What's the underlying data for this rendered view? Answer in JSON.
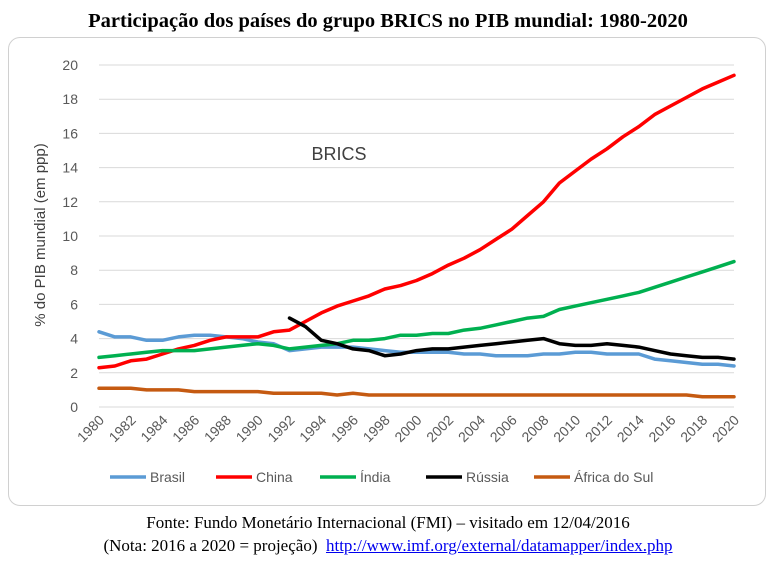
{
  "title": "Participação dos países do grupo BRICS no PIB mundial: 1980-2020",
  "source": {
    "line1": "Fonte: Fundo Monetário Internacional (FMI) – visitado em 12/04/2016",
    "note": "(Nota: 2016 a 2020 = projeção)",
    "link": "http://www.imf.org/external/datamapper/index.php"
  },
  "chart_data": {
    "type": "line",
    "title": "",
    "annotation": "BRICS",
    "xlabel": "",
    "ylabel": "% do PIB mundial (em ppp)",
    "ylim": [
      0,
      20
    ],
    "yticks": [
      0,
      2,
      4,
      6,
      8,
      10,
      12,
      14,
      16,
      18,
      20
    ],
    "xlim": [
      1980,
      2020
    ],
    "xticks": [
      1980,
      1982,
      1984,
      1986,
      1988,
      1990,
      1992,
      1994,
      1996,
      1998,
      2000,
      2002,
      2004,
      2006,
      2008,
      2010,
      2012,
      2014,
      2016,
      2018,
      2020
    ],
    "grid": "horizontal",
    "legend": "bottom",
    "x": [
      1980,
      1981,
      1982,
      1983,
      1984,
      1985,
      1986,
      1987,
      1988,
      1989,
      1990,
      1991,
      1992,
      1993,
      1994,
      1995,
      1996,
      1997,
      1998,
      1999,
      2000,
      2001,
      2002,
      2003,
      2004,
      2005,
      2006,
      2007,
      2008,
      2009,
      2010,
      2011,
      2012,
      2013,
      2014,
      2015,
      2016,
      2017,
      2018,
      2019,
      2020
    ],
    "series": [
      {
        "name": "Brasil",
        "color": "#5b9bd5",
        "values": [
          4.4,
          4.1,
          4.1,
          3.9,
          3.9,
          4.1,
          4.2,
          4.2,
          4.1,
          4.0,
          3.8,
          3.7,
          3.3,
          3.4,
          3.5,
          3.5,
          3.5,
          3.4,
          3.3,
          3.2,
          3.2,
          3.2,
          3.2,
          3.1,
          3.1,
          3.0,
          3.0,
          3.0,
          3.1,
          3.1,
          3.2,
          3.2,
          3.1,
          3.1,
          3.1,
          2.8,
          2.7,
          2.6,
          2.5,
          2.5,
          2.4
        ]
      },
      {
        "name": "China",
        "color": "#ff0000",
        "values": [
          2.3,
          2.4,
          2.7,
          2.8,
          3.1,
          3.4,
          3.6,
          3.9,
          4.1,
          4.1,
          4.1,
          4.4,
          4.5,
          5.0,
          5.5,
          5.9,
          6.2,
          6.5,
          6.9,
          7.1,
          7.4,
          7.8,
          8.3,
          8.7,
          9.2,
          9.8,
          10.4,
          11.2,
          12.0,
          13.1,
          13.8,
          14.5,
          15.1,
          15.8,
          16.4,
          17.1,
          17.6,
          18.1,
          18.6,
          19.0,
          19.4
        ]
      },
      {
        "name": "Índia",
        "color": "#00b050",
        "values": [
          2.9,
          3.0,
          3.1,
          3.2,
          3.3,
          3.3,
          3.3,
          3.4,
          3.5,
          3.6,
          3.7,
          3.6,
          3.4,
          3.5,
          3.6,
          3.7,
          3.9,
          3.9,
          4.0,
          4.2,
          4.2,
          4.3,
          4.3,
          4.5,
          4.6,
          4.8,
          5.0,
          5.2,
          5.3,
          5.7,
          5.9,
          6.1,
          6.3,
          6.5,
          6.7,
          7.0,
          7.3,
          7.6,
          7.9,
          8.2,
          8.5
        ]
      },
      {
        "name": "Rússia",
        "color": "#000000",
        "start": 1992,
        "values": [
          null,
          null,
          null,
          null,
          null,
          null,
          null,
          null,
          null,
          null,
          null,
          null,
          5.2,
          4.7,
          3.9,
          3.7,
          3.4,
          3.3,
          3.0,
          3.1,
          3.3,
          3.4,
          3.4,
          3.5,
          3.6,
          3.7,
          3.8,
          3.9,
          4.0,
          3.7,
          3.6,
          3.6,
          3.7,
          3.6,
          3.5,
          3.3,
          3.1,
          3.0,
          2.9,
          2.9,
          2.8
        ]
      },
      {
        "name": "África do Sul",
        "color": "#c55a11",
        "values": [
          1.1,
          1.1,
          1.1,
          1.0,
          1.0,
          1.0,
          0.9,
          0.9,
          0.9,
          0.9,
          0.9,
          0.8,
          0.8,
          0.8,
          0.8,
          0.7,
          0.8,
          0.7,
          0.7,
          0.7,
          0.7,
          0.7,
          0.7,
          0.7,
          0.7,
          0.7,
          0.7,
          0.7,
          0.7,
          0.7,
          0.7,
          0.7,
          0.7,
          0.7,
          0.7,
          0.7,
          0.7,
          0.7,
          0.6,
          0.6,
          0.6
        ]
      }
    ]
  }
}
